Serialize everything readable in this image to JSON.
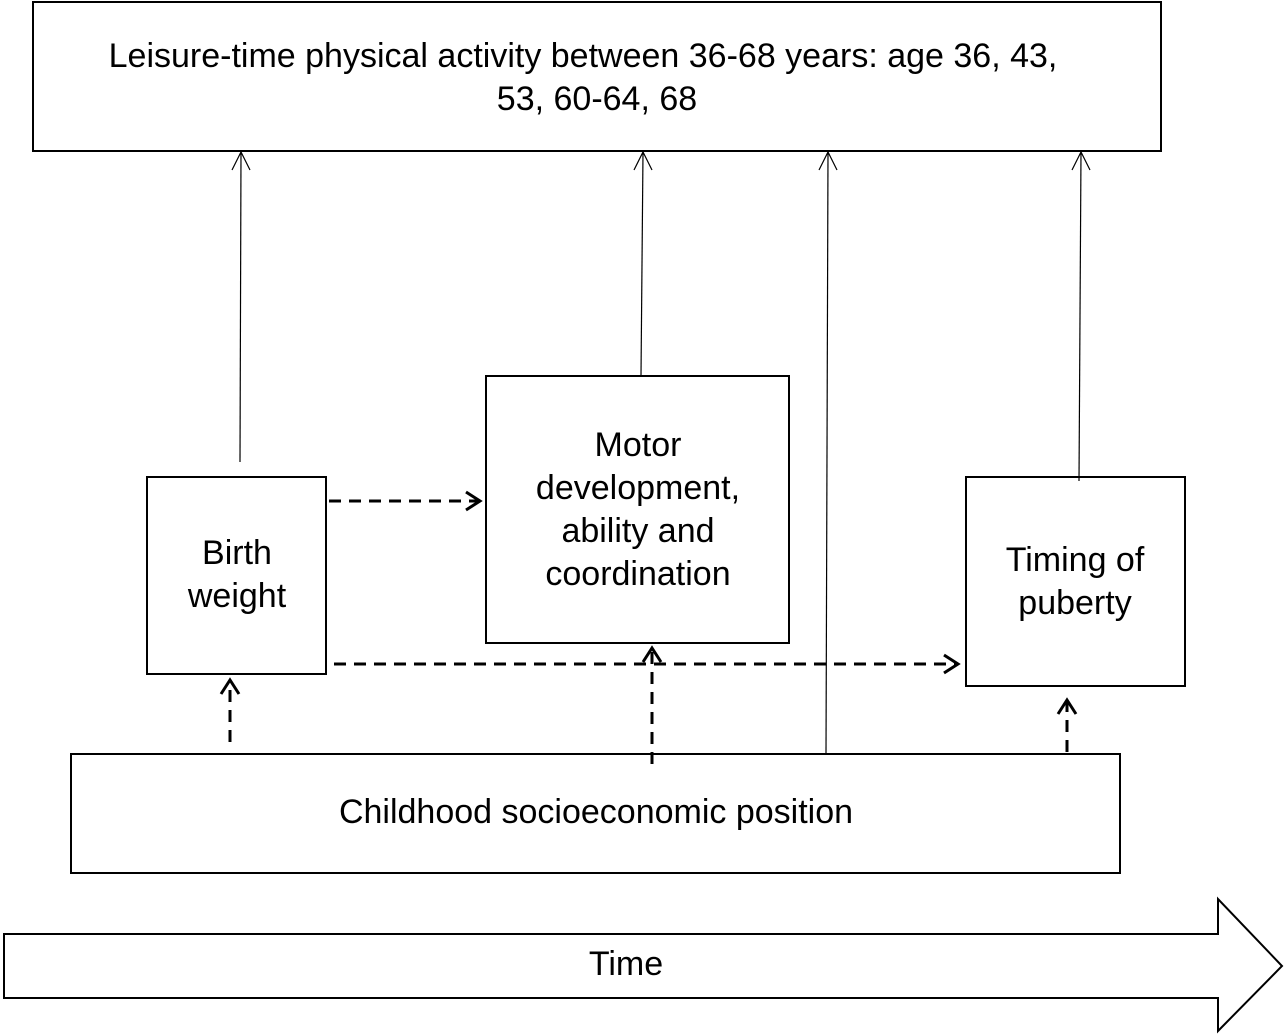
{
  "nodes": [
    {
      "label": [
        "Leisure-time physical activity between 36-68 years: age 36, 43,",
        "53, 60-64, 68"
      ]
    },
    {
      "label": [
        "Birth",
        "weight"
      ]
    },
    {
      "label": [
        "Motor",
        "development,",
        "ability and",
        "coordination"
      ]
    },
    {
      "label": [
        "Timing of",
        "puberty"
      ]
    },
    {
      "label": [
        "Childhood socioeconomic position"
      ]
    },
    {
      "label": [
        "Time"
      ]
    }
  ]
}
